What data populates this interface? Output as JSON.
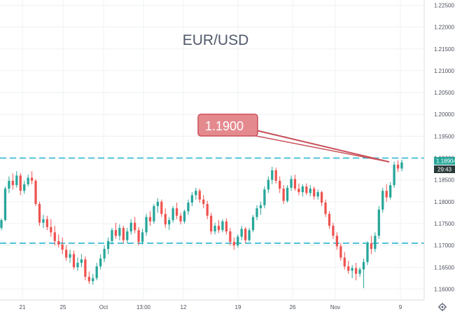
{
  "chart_data": {
    "type": "candlestick",
    "title": "EUR/USD",
    "ylim": [
      1.1575,
      1.2262
    ],
    "y_ticks": [
      "1.22500",
      "1.22000",
      "1.21500",
      "1.21000",
      "1.20500",
      "1.20000",
      "1.19500",
      "1.19000",
      "1.18500",
      "1.18000",
      "1.17500",
      "1.17000",
      "1.16500",
      "1.16000"
    ],
    "x_ticks": [
      "21",
      "25",
      "Oct",
      "13:00",
      "12",
      "19",
      "26",
      "Nov",
      "9"
    ],
    "reference_lines": [
      1.19,
      1.1705
    ],
    "annotation": {
      "label": "1.1900",
      "points_to": 1.19
    },
    "last_price_label": "1.18904",
    "countdown_label": "29:43",
    "colors": {
      "up": "#26a69a",
      "down": "#ef5350",
      "ref_line": "#4fc3d9",
      "callout_fill": "#e48a8f",
      "callout_stroke": "#c9505a",
      "badge_price": "#26a69a",
      "badge_time": "#2a3a3a"
    },
    "candles": [
      [
        1.174,
        1.1762,
        1.1735,
        1.1758
      ],
      [
        1.1758,
        1.1835,
        1.1755,
        1.183
      ],
      [
        1.183,
        1.1858,
        1.182,
        1.1848
      ],
      [
        1.1848,
        1.1865,
        1.1828,
        1.1838
      ],
      [
        1.1838,
        1.187,
        1.1832,
        1.186
      ],
      [
        1.186,
        1.1866,
        1.1815,
        1.1825
      ],
      [
        1.1825,
        1.1848,
        1.1818,
        1.184
      ],
      [
        1.184,
        1.1862,
        1.1835,
        1.1855
      ],
      [
        1.1855,
        1.187,
        1.184,
        1.1848
      ],
      [
        1.1848,
        1.1852,
        1.179,
        1.1795
      ],
      [
        1.1795,
        1.18,
        1.1745,
        1.1752
      ],
      [
        1.1752,
        1.177,
        1.174,
        1.176
      ],
      [
        1.176,
        1.1768,
        1.1735,
        1.1742
      ],
      [
        1.1742,
        1.176,
        1.172,
        1.173
      ],
      [
        1.173,
        1.1745,
        1.17,
        1.171
      ],
      [
        1.171,
        1.1725,
        1.1695,
        1.1702
      ],
      [
        1.1702,
        1.1718,
        1.168,
        1.169
      ],
      [
        1.169,
        1.17,
        1.1665,
        1.1672
      ],
      [
        1.1672,
        1.169,
        1.166,
        1.168
      ],
      [
        1.168,
        1.1688,
        1.1645,
        1.165
      ],
      [
        1.165,
        1.1672,
        1.1642,
        1.166
      ],
      [
        1.166,
        1.168,
        1.165,
        1.1668
      ],
      [
        1.1668,
        1.1675,
        1.162,
        1.1628
      ],
      [
        1.1628,
        1.164,
        1.1612,
        1.1618
      ],
      [
        1.1618,
        1.1635,
        1.161,
        1.1625
      ],
      [
        1.1625,
        1.166,
        1.162,
        1.1652
      ],
      [
        1.1652,
        1.168,
        1.1645,
        1.167
      ],
      [
        1.167,
        1.17,
        1.1662,
        1.1692
      ],
      [
        1.1692,
        1.1718,
        1.168,
        1.171
      ],
      [
        1.171,
        1.174,
        1.1702,
        1.1735
      ],
      [
        1.1735,
        1.1752,
        1.1715,
        1.1722
      ],
      [
        1.1722,
        1.1748,
        1.1712,
        1.174
      ],
      [
        1.174,
        1.1745,
        1.1705,
        1.1712
      ],
      [
        1.1712,
        1.174,
        1.1705,
        1.1732
      ],
      [
        1.1732,
        1.176,
        1.1725,
        1.1752
      ],
      [
        1.1752,
        1.1765,
        1.1728,
        1.1735
      ],
      [
        1.1735,
        1.1742,
        1.17,
        1.1708
      ],
      [
        1.1708,
        1.1738,
        1.1702,
        1.173
      ],
      [
        1.173,
        1.1772,
        1.1722,
        1.1765
      ],
      [
        1.1765,
        1.1778,
        1.1745,
        1.1755
      ],
      [
        1.1755,
        1.1795,
        1.175,
        1.179
      ],
      [
        1.179,
        1.1808,
        1.1775,
        1.18
      ],
      [
        1.18,
        1.1805,
        1.1765,
        1.1772
      ],
      [
        1.1772,
        1.1785,
        1.174,
        1.1748
      ],
      [
        1.1748,
        1.1765,
        1.1735,
        1.1758
      ],
      [
        1.1758,
        1.179,
        1.1752,
        1.1785
      ],
      [
        1.1785,
        1.1798,
        1.176,
        1.1768
      ],
      [
        1.1768,
        1.1775,
        1.1748,
        1.1755
      ],
      [
        1.1755,
        1.1782,
        1.175,
        1.1778
      ],
      [
        1.1778,
        1.1805,
        1.177,
        1.1798
      ],
      [
        1.1798,
        1.1822,
        1.179,
        1.1815
      ],
      [
        1.1815,
        1.1832,
        1.1805,
        1.1825
      ],
      [
        1.1825,
        1.183,
        1.1798,
        1.1805
      ],
      [
        1.1805,
        1.1815,
        1.1785,
        1.1795
      ],
      [
        1.1795,
        1.1802,
        1.176,
        1.1768
      ],
      [
        1.1768,
        1.1775,
        1.1725,
        1.1732
      ],
      [
        1.1732,
        1.1752,
        1.1725,
        1.1745
      ],
      [
        1.1745,
        1.1758,
        1.1728,
        1.1735
      ],
      [
        1.1735,
        1.176,
        1.173,
        1.1755
      ],
      [
        1.1755,
        1.1762,
        1.1725,
        1.1732
      ],
      [
        1.1732,
        1.174,
        1.17,
        1.1708
      ],
      [
        1.1708,
        1.1718,
        1.169,
        1.17
      ],
      [
        1.17,
        1.1725,
        1.1695,
        1.172
      ],
      [
        1.172,
        1.1745,
        1.1712,
        1.1738
      ],
      [
        1.1738,
        1.1742,
        1.1705,
        1.1712
      ],
      [
        1.1712,
        1.174,
        1.1708,
        1.1735
      ],
      [
        1.1735,
        1.177,
        1.173,
        1.1765
      ],
      [
        1.1765,
        1.1792,
        1.1758,
        1.1785
      ],
      [
        1.1785,
        1.18,
        1.177,
        1.1792
      ],
      [
        1.1792,
        1.1835,
        1.1785,
        1.1828
      ],
      [
        1.1828,
        1.1858,
        1.182,
        1.185
      ],
      [
        1.185,
        1.188,
        1.184,
        1.1872
      ],
      [
        1.1872,
        1.1878,
        1.1842,
        1.1848
      ],
      [
        1.1848,
        1.1858,
        1.182,
        1.183
      ],
      [
        1.183,
        1.1838,
        1.1795,
        1.1802
      ],
      [
        1.1802,
        1.1838,
        1.1798,
        1.1832
      ],
      [
        1.1832,
        1.186,
        1.1825,
        1.1852
      ],
      [
        1.1852,
        1.1862,
        1.1825,
        1.183
      ],
      [
        1.183,
        1.1842,
        1.1815,
        1.1822
      ],
      [
        1.1822,
        1.184,
        1.1812,
        1.1835
      ],
      [
        1.1835,
        1.1842,
        1.1815,
        1.182
      ],
      [
        1.182,
        1.1838,
        1.1812,
        1.183
      ],
      [
        1.183,
        1.1835,
        1.1805,
        1.1812
      ],
      [
        1.1812,
        1.1828,
        1.1805,
        1.1822
      ],
      [
        1.1822,
        1.1825,
        1.179,
        1.1798
      ],
      [
        1.1798,
        1.1805,
        1.1765,
        1.1772
      ],
      [
        1.1772,
        1.1778,
        1.1738,
        1.1745
      ],
      [
        1.1745,
        1.1752,
        1.1715,
        1.1722
      ],
      [
        1.1722,
        1.173,
        1.169,
        1.1698
      ],
      [
        1.1698,
        1.1705,
        1.1665,
        1.1672
      ],
      [
        1.1672,
        1.1685,
        1.1645,
        1.1652
      ],
      [
        1.1652,
        1.1665,
        1.1635,
        1.1642
      ],
      [
        1.1642,
        1.1655,
        1.1625,
        1.1648
      ],
      [
        1.1648,
        1.166,
        1.162,
        1.1635
      ],
      [
        1.1635,
        1.165,
        1.1628,
        1.1645
      ],
      [
        1.1645,
        1.167,
        1.1602,
        1.1662
      ],
      [
        1.1662,
        1.171,
        1.1655,
        1.1705
      ],
      [
        1.1705,
        1.1722,
        1.168,
        1.1692
      ],
      [
        1.1692,
        1.173,
        1.1685,
        1.1722
      ],
      [
        1.1722,
        1.179,
        1.1715,
        1.1782
      ],
      [
        1.1782,
        1.1832,
        1.1775,
        1.1825
      ],
      [
        1.1825,
        1.184,
        1.18,
        1.181
      ],
      [
        1.181,
        1.1845,
        1.1805,
        1.1838
      ],
      [
        1.1838,
        1.1892,
        1.1832,
        1.1885
      ],
      [
        1.1885,
        1.1895,
        1.1868,
        1.1876
      ],
      [
        1.1876,
        1.1896,
        1.187,
        1.189
      ]
    ]
  }
}
